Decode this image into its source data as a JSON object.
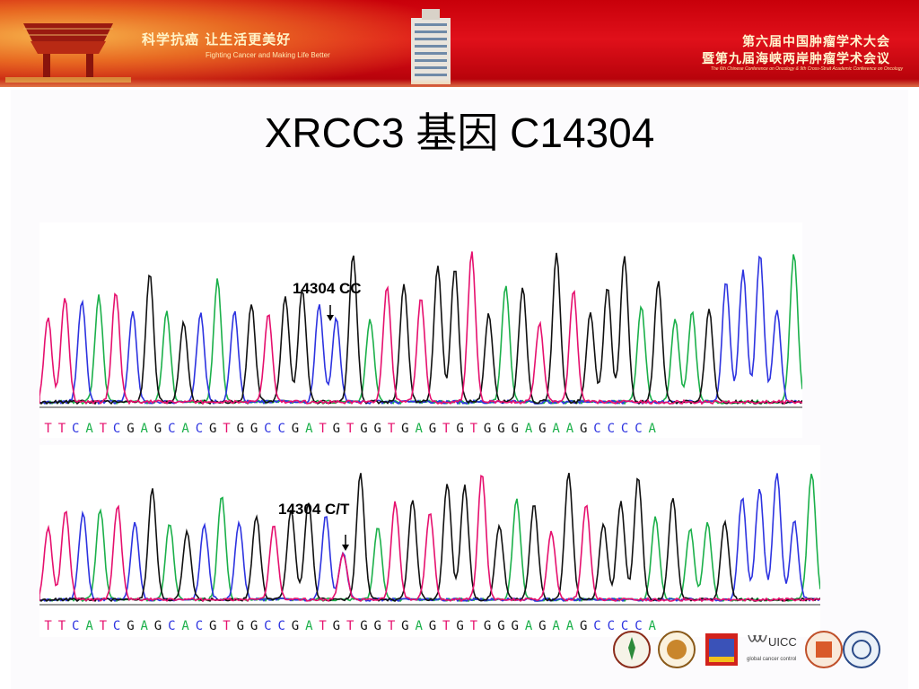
{
  "header": {
    "slogan": "科学抗癌 让生活更美好",
    "slogan_en": "Fighting Cancer and Making Life Better",
    "conference_line1": "第六届中国肿瘤学术大会",
    "conference_line2": "暨第九届海峡两岸肿瘤学术会议",
    "conference_en": "The 6th Chinese Conference on Oncology & 9th Cross-Strait Academic Conference on Oncology"
  },
  "slide": {
    "title": "XRCC3 基因 C14304"
  },
  "panels": [
    {
      "label": "14304 CC",
      "sequence": "TTCATCGAGCACGTGGCCGATGTGGTGAGTGTGGGAGAAGCCCCA"
    },
    {
      "label": "14304 C/T",
      "sequence": "TTCATCGAGCACGTGGCCGATGTGGTGAGTGTGGGAGAAGCCCCA"
    }
  ],
  "base_colors": {
    "A": "#1bb04a",
    "C": "#2d33e0",
    "G": "#111111",
    "T": "#e6106e"
  },
  "footer": {
    "logos": [
      "logo-seal-1",
      "logo-seal-2",
      "logo-cae",
      "logo-uicc",
      "logo-seal-3",
      "logo-seal-4"
    ],
    "uicc_label": "UICC",
    "uicc_sub": "global cancer control"
  }
}
